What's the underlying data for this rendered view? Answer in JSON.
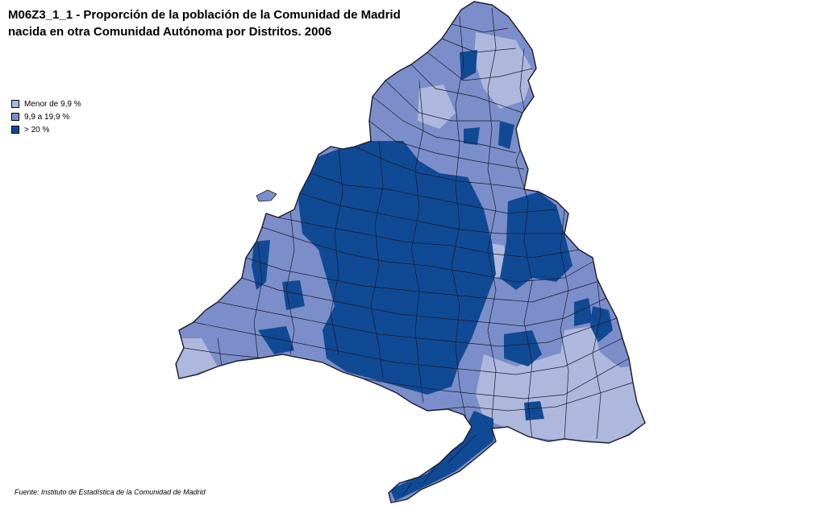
{
  "title": {
    "line1": "M06Z3_1_1 - Proporción de la población  de la  Comunidad de Madrid",
    "line2": "nacida en  otra Comunidad  Autónoma por Distritos. 2006"
  },
  "legend": {
    "items": [
      {
        "label": "Menor de 9,9 %",
        "color": "#aeb8dd"
      },
      {
        "label": "9,9 a 19,9 %",
        "color": "#7b8ec9"
      },
      {
        "label": "> 20 %",
        "color": "#114a94"
      }
    ]
  },
  "map": {
    "region": "Comunidad de Madrid",
    "colors": {
      "low": "#aeb8dd",
      "mid": "#7b8ec9",
      "high": "#114a94",
      "border": "#1a1a2e"
    }
  },
  "source": "Fuente: Instituto de Estadística de la Comunidad de Madrid"
}
